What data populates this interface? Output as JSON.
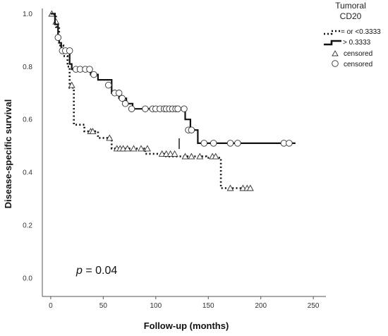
{
  "chart_data": {
    "type": "line",
    "xlabel": "Follow-up (months)",
    "ylabel": "Disease-specific survival",
    "xlim": [
      -8,
      262
    ],
    "ylim": [
      -0.07,
      1.02
    ],
    "xticks": [
      0,
      50,
      100,
      150,
      200,
      250
    ],
    "yticks": [
      0.0,
      0.2,
      0.4,
      0.6,
      0.8,
      1.0
    ],
    "xtick_labels": [
      "0",
      "50",
      "100",
      "150",
      "200",
      "250"
    ],
    "ytick_labels": [
      "0.0",
      "0.2",
      "0.4",
      "0.6",
      "0.8",
      "1.0"
    ],
    "grid": false,
    "legend": {
      "title_line1": "Tumoral",
      "title_line2": "CD20",
      "placement": "top-right",
      "entries": [
        "= or <0.3333",
        "> 0.3333",
        "censored",
        "censored"
      ]
    },
    "annotation": {
      "p_symbol": "p",
      "p_text": " = 0.04"
    },
    "series": [
      {
        "name": "= or <0.3333",
        "style": "dotted",
        "color": "#111111",
        "marker": "triangle",
        "steps": [
          [
            0,
            1.0
          ],
          [
            5,
            0.95
          ],
          [
            8,
            0.88
          ],
          [
            12,
            0.84
          ],
          [
            16,
            0.8
          ],
          [
            18,
            0.72
          ],
          [
            22,
            0.58
          ],
          [
            32,
            0.555
          ],
          [
            45,
            0.53
          ],
          [
            58,
            0.49
          ],
          [
            90,
            0.47
          ],
          [
            110,
            0.46
          ],
          [
            148,
            0.455
          ],
          [
            162,
            0.34
          ],
          [
            192,
            0.34
          ]
        ],
        "censored": [
          [
            1,
            1.0
          ],
          [
            5,
            0.97
          ],
          [
            20,
            0.73
          ],
          [
            38,
            0.555
          ],
          [
            40,
            0.555
          ],
          [
            56,
            0.53
          ],
          [
            63,
            0.49
          ],
          [
            66,
            0.49
          ],
          [
            69,
            0.49
          ],
          [
            73,
            0.49
          ],
          [
            79,
            0.49
          ],
          [
            86,
            0.49
          ],
          [
            92,
            0.49
          ],
          [
            106,
            0.47
          ],
          [
            110,
            0.47
          ],
          [
            114,
            0.47
          ],
          [
            118,
            0.47
          ],
          [
            128,
            0.46
          ],
          [
            134,
            0.46
          ],
          [
            142,
            0.46
          ],
          [
            154,
            0.46
          ],
          [
            157,
            0.46
          ],
          [
            171,
            0.34
          ],
          [
            183,
            0.34
          ],
          [
            187,
            0.34
          ],
          [
            190,
            0.34
          ]
        ]
      },
      {
        "name": "> 0.3333",
        "style": "solid",
        "color": "#111111",
        "marker": "circle",
        "steps": [
          [
            0,
            1.0
          ],
          [
            4,
            0.96
          ],
          [
            7,
            0.91
          ],
          [
            8,
            0.89
          ],
          [
            10,
            0.86
          ],
          [
            18,
            0.81
          ],
          [
            20,
            0.79
          ],
          [
            38,
            0.77
          ],
          [
            45,
            0.75
          ],
          [
            58,
            0.7
          ],
          [
            65,
            0.68
          ],
          [
            72,
            0.66
          ],
          [
            78,
            0.64
          ],
          [
            128,
            0.6
          ],
          [
            133,
            0.56
          ],
          [
            140,
            0.51
          ],
          [
            233,
            0.51
          ]
        ],
        "censored": [
          [
            7,
            0.91
          ],
          [
            11,
            0.86
          ],
          [
            14,
            0.86
          ],
          [
            18,
            0.86
          ],
          [
            24,
            0.79
          ],
          [
            28,
            0.79
          ],
          [
            33,
            0.79
          ],
          [
            37,
            0.79
          ],
          [
            41,
            0.77
          ],
          [
            55,
            0.73
          ],
          [
            61,
            0.7
          ],
          [
            65,
            0.7
          ],
          [
            68,
            0.68
          ],
          [
            71,
            0.66
          ],
          [
            77,
            0.64
          ],
          [
            90,
            0.64
          ],
          [
            97,
            0.64
          ],
          [
            100,
            0.64
          ],
          [
            104,
            0.64
          ],
          [
            108,
            0.64
          ],
          [
            110,
            0.64
          ],
          [
            113,
            0.64
          ],
          [
            116,
            0.64
          ],
          [
            119,
            0.64
          ],
          [
            121,
            0.64
          ],
          [
            127,
            0.64
          ],
          [
            131,
            0.56
          ],
          [
            134,
            0.56
          ],
          [
            146,
            0.51
          ],
          [
            155,
            0.51
          ],
          [
            171,
            0.51
          ],
          [
            178,
            0.51
          ],
          [
            222,
            0.51
          ],
          [
            227,
            0.51
          ]
        ]
      }
    ]
  }
}
